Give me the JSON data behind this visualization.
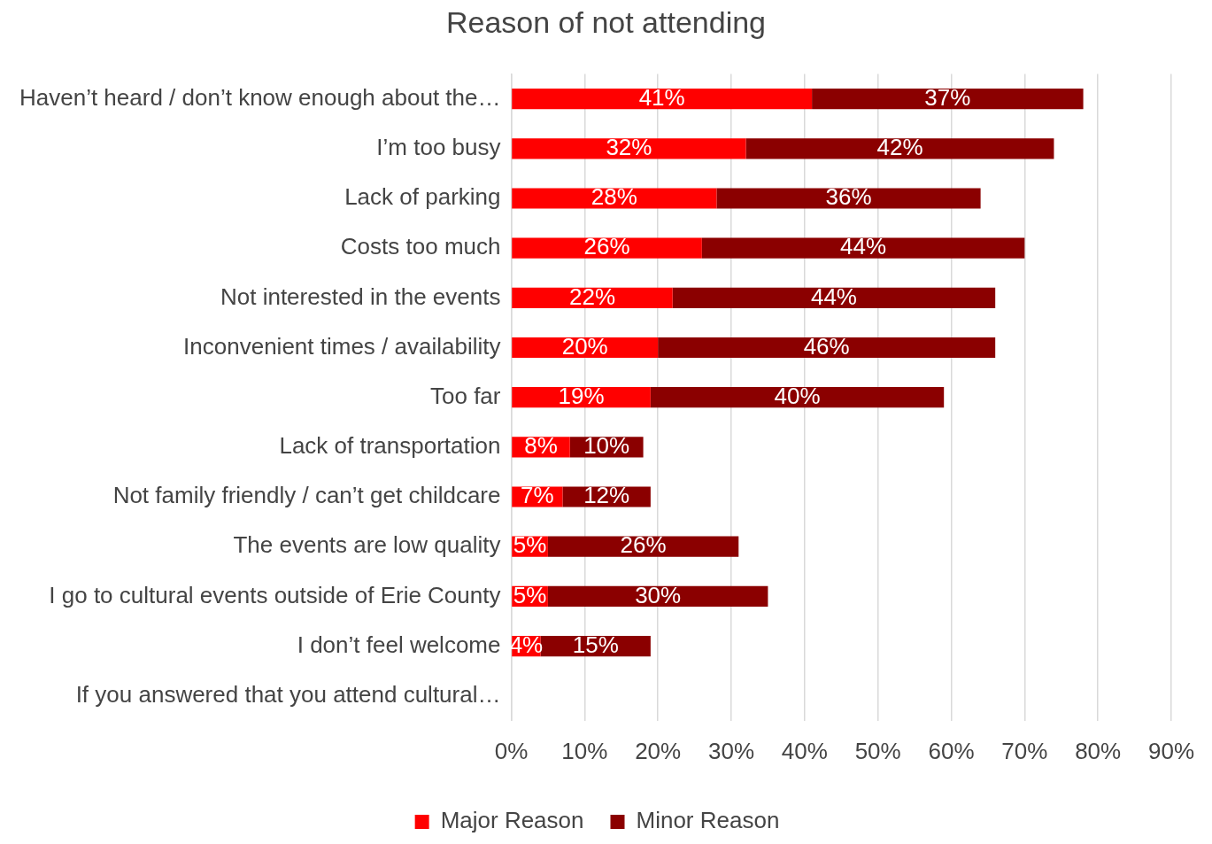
{
  "chart_data": {
    "type": "bar",
    "orientation": "horizontal",
    "stacked": true,
    "title": "Reason of not attending",
    "categories": [
      "Haven’t heard / don’t know enough about the…",
      "I’m too busy",
      "Lack of parking",
      "Costs too much",
      "Not interested in the events",
      "Inconvenient times / availability",
      "Too far",
      "Lack of transportation",
      "Not family friendly / can’t get childcare",
      "The events are low quality",
      "I go to cultural events outside of Erie County",
      "I don’t feel welcome",
      "If you answered that you attend cultural…"
    ],
    "series": [
      {
        "name": "Major Reason",
        "color": "#ff0000",
        "values": [
          41,
          32,
          28,
          26,
          22,
          20,
          19,
          8,
          7,
          5,
          5,
          4,
          null
        ],
        "value_labels": [
          "41%",
          "32%",
          "28%",
          "26%",
          "22%",
          "20%",
          "19%",
          "8%",
          "7%",
          "5%",
          "5%",
          "4%",
          null
        ]
      },
      {
        "name": "Minor Reason",
        "color": "#8b0000",
        "values": [
          37,
          42,
          36,
          44,
          44,
          46,
          40,
          10,
          12,
          26,
          30,
          15,
          null
        ],
        "value_labels": [
          "37%",
          "42%",
          "36%",
          "44%",
          "44%",
          "46%",
          "40%",
          "10%",
          "12%",
          "26%",
          "30%",
          "15%",
          null
        ]
      }
    ],
    "xlim": [
      0,
      90
    ],
    "xticks": [
      {
        "value": 0,
        "label": "0%"
      },
      {
        "value": 10,
        "label": "10%"
      },
      {
        "value": 20,
        "label": "20%"
      },
      {
        "value": 30,
        "label": "30%"
      },
      {
        "value": 40,
        "label": "40%"
      },
      {
        "value": 50,
        "label": "50%"
      },
      {
        "value": 60,
        "label": "60%"
      },
      {
        "value": 70,
        "label": "70%"
      },
      {
        "value": 80,
        "label": "80%"
      },
      {
        "value": 90,
        "label": "90%"
      }
    ],
    "grid": "x",
    "legend": "bottom"
  }
}
